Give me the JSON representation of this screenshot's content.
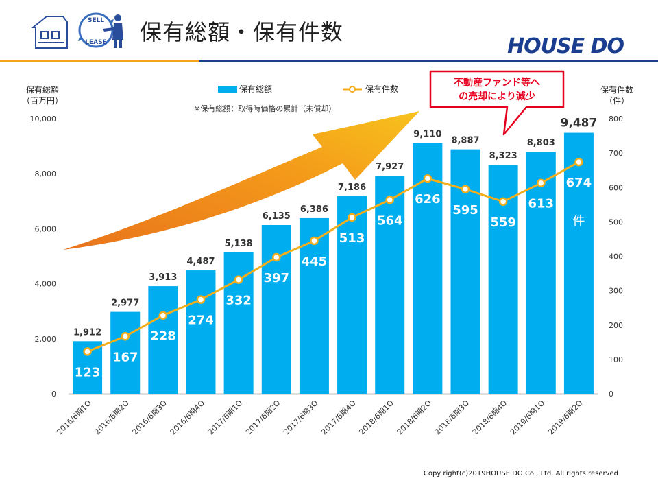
{
  "header": {
    "title": "保有総額・保有件数",
    "brand": "HOUSE DO",
    "logo_text_top": "SELL",
    "logo_text_bottom": "LEASE"
  },
  "footer": {
    "copyright": "Copy right(c)2019HOUSE DO Co., Ltd. All rights reserved"
  },
  "colors": {
    "bar": "#00aeef",
    "line": "#f2ae1c",
    "header_orange": "#f5a31a",
    "header_navy": "#1f3d8f",
    "callout": "#e6001f"
  },
  "chart_data": {
    "type": "bar",
    "categories": [
      "2016/6期1Q",
      "2016/6期2Q",
      "2016/6期3Q",
      "2016/6期4Q",
      "2017/6期1Q",
      "2017/6期2Q",
      "2017/6期3Q",
      "2017/6期4Q",
      "2018/6期1Q",
      "2018/6期2Q",
      "2018/6期3Q",
      "2018/6期4Q",
      "2019/6期1Q",
      "2019/6期2Q"
    ],
    "series": [
      {
        "name": "保有総額",
        "type": "bar",
        "axis": "left",
        "values": [
          1912,
          2977,
          3913,
          4487,
          5138,
          6135,
          6386,
          7186,
          7927,
          9110,
          8887,
          8323,
          8803,
          9487
        ],
        "labels": [
          "1,912",
          "2,977",
          "3,913",
          "4,487",
          "5,138",
          "6,135",
          "6,386",
          "7,186",
          "7,927",
          "9,110",
          "8,887",
          "8,323",
          "8,803",
          "9,487"
        ]
      },
      {
        "name": "保有件数",
        "type": "line",
        "axis": "right",
        "values": [
          123,
          167,
          228,
          274,
          332,
          397,
          445,
          513,
          564,
          626,
          595,
          559,
          613,
          674
        ],
        "labels": [
          "123",
          "167",
          "228",
          "274",
          "332",
          "397",
          "445",
          "513",
          "564",
          "626",
          "595",
          "559",
          "613",
          "674"
        ]
      }
    ],
    "ylabel_left": [
      "保有総額",
      "（百万円）"
    ],
    "ylabel_right": [
      "保有件数",
      "（件）"
    ],
    "ylim_left": [
      0,
      10000
    ],
    "ylim_right": [
      0,
      800
    ],
    "yticks_left": [
      "0",
      "2,000",
      "4,000",
      "6,000",
      "8,000",
      "10,000"
    ],
    "yticks_right": [
      "0",
      "100",
      "200",
      "300",
      "400",
      "500",
      "600",
      "700",
      "800"
    ],
    "note": "※保有総額：取得時価格の累計（未償却）",
    "unit_label": "件",
    "callout": [
      "不動産ファンド等へ",
      "の売却により減少"
    ],
    "legend_position": "top-center",
    "grid": false
  }
}
